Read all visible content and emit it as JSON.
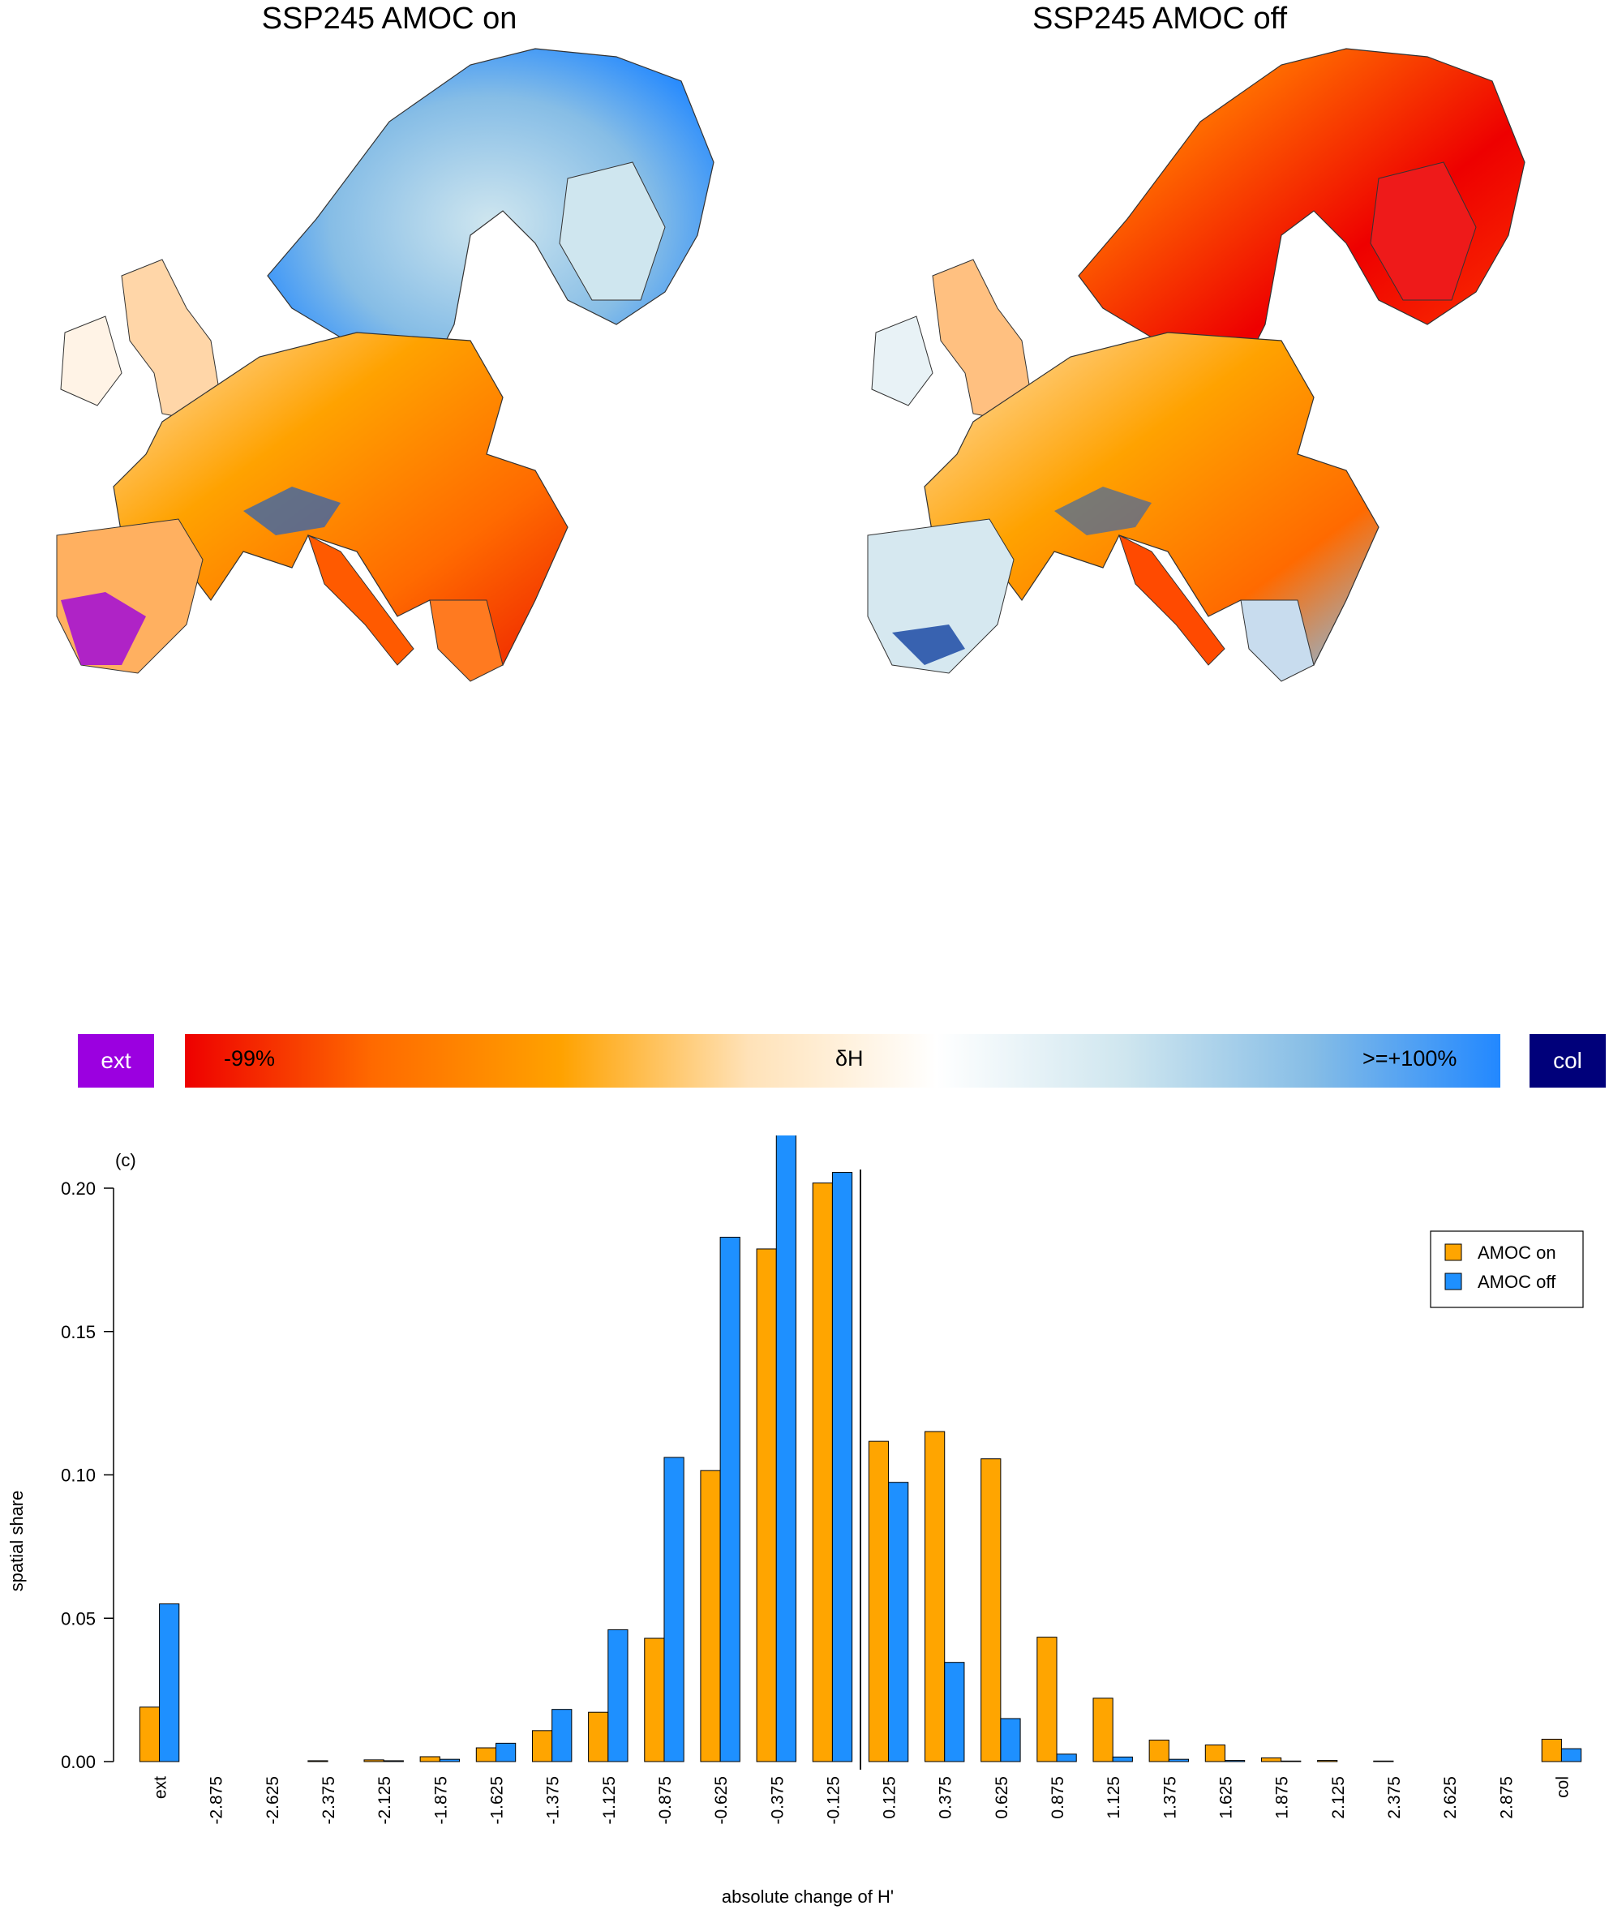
{
  "maps": {
    "left_title": "SSP245 AMOC on",
    "right_title": "SSP245 AMOC off"
  },
  "legend": {
    "ext_label": "ext",
    "col_label": "col",
    "min_label": "-99%",
    "mid_label": "δH",
    "max_label": ">=+100%",
    "colors": {
      "ext": "#9b00e0",
      "col": "#00007a",
      "gradient": [
        "#ee0000",
        "#ff6a00",
        "#ffa200",
        "#ffe2b8",
        "#ffffff",
        "#cfe6ef",
        "#86bde6",
        "#2288ff"
      ]
    }
  },
  "chart_data": {
    "type": "bar",
    "panel_label": "(c)",
    "ylabel": "spatial share",
    "xlabel": "absolute change of H'",
    "ylim": [
      0,
      0.2
    ],
    "yticks": [
      "0.00",
      "0.05",
      "0.10",
      "0.15",
      "0.20"
    ],
    "grid": false,
    "legend_position": "top-right",
    "categories": [
      "ext",
      "-2.875",
      "-2.625",
      "-2.375",
      "-2.125",
      "-1.875",
      "-1.625",
      "-1.375",
      "-1.125",
      "-0.875",
      "-0.625",
      "-0.375",
      "-0.125",
      "0.125",
      "0.375",
      "0.625",
      "0.875",
      "1.125",
      "1.375",
      "1.625",
      "1.875",
      "2.125",
      "2.375",
      "2.625",
      "2.875",
      "col"
    ],
    "series": [
      {
        "name": "AMOC on",
        "color": "#ffa500",
        "values": [
          0.019,
          0.0,
          0.0,
          0.0003,
          0.0006,
          0.0017,
          0.0048,
          0.0108,
          0.0172,
          0.043,
          0.1015,
          0.1788,
          0.2018,
          0.1117,
          0.1151,
          0.1056,
          0.0434,
          0.0221,
          0.0075,
          0.0058,
          0.0013,
          0.0004,
          0.0002,
          0.0,
          0.0,
          0.0078
        ]
      },
      {
        "name": "AMOC off",
        "color": "#1e90ff",
        "values": [
          0.055,
          0.0,
          0.0,
          0.0,
          0.0003,
          0.0008,
          0.0064,
          0.0182,
          0.046,
          0.1061,
          0.1829,
          0.2222,
          0.2055,
          0.0974,
          0.0346,
          0.015,
          0.0026,
          0.0016,
          0.0008,
          0.0004,
          0.0002,
          0.0,
          0.0,
          0.0,
          0.0,
          0.0045
        ]
      }
    ],
    "reference_line_between": [
      "-0.125",
      "0.125"
    ]
  }
}
